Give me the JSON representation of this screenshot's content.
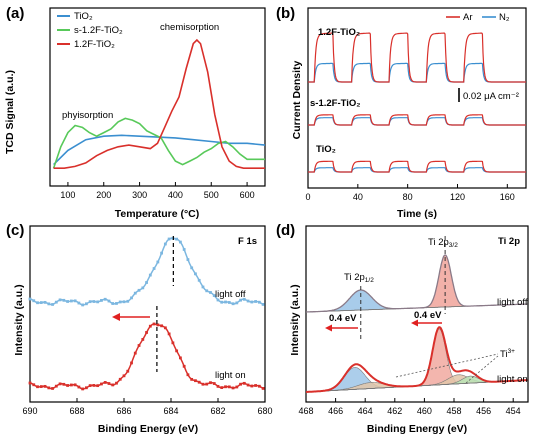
{
  "colors": {
    "tio2": "#3b8fd0",
    "s12f": "#58c95a",
    "f12": "#d9302b",
    "ar": "#d9302b",
    "n2": "#3b8fd0",
    "f1s_off": "#7cb7e0",
    "f1s_on": "#d9302b",
    "ti_fill_blue": "#9ec6e8",
    "ti_fill_red": "#f1a9a0",
    "ti_fill_green": "#b8e3b5",
    "ti_fill_tan": "#e2c6a8",
    "ti_fit": "#8a7a88"
  },
  "chart_data": [
    {
      "id": "a",
      "type": "line",
      "panel_label": "(a)",
      "xlabel": "Temperature (°C)",
      "ylabel": "TCD Signal (a.u.)",
      "xlim": [
        50,
        650
      ],
      "ylim": [
        0,
        1
      ],
      "x_ticks": [
        100,
        200,
        300,
        400,
        500,
        600
      ],
      "legend": [
        "TiO₂",
        "s-1.2F-TiO₂",
        "1.2F-TiO₂"
      ],
      "legend_position": "top-left",
      "annotations": [
        "chemisorption",
        "phyisorption"
      ],
      "series": [
        {
          "name": "TiO₂",
          "color_key": "tio2",
          "x": [
            60,
            100,
            150,
            200,
            250,
            300,
            350,
            400,
            450,
            500,
            550,
            600,
            650
          ],
          "y": [
            0.12,
            0.2,
            0.26,
            0.28,
            0.285,
            0.28,
            0.275,
            0.27,
            0.26,
            0.25,
            0.24,
            0.24,
            0.23
          ]
        },
        {
          "name": "s-1.2F-TiO₂",
          "color_key": "s12f",
          "x": [
            60,
            80,
            100,
            120,
            140,
            160,
            180,
            200,
            220,
            240,
            260,
            280,
            300,
            320,
            340,
            360,
            380,
            400,
            420,
            440,
            460,
            480,
            500,
            520,
            540,
            560,
            580,
            600,
            620,
            640,
            650
          ],
          "y": [
            0.1,
            0.22,
            0.3,
            0.34,
            0.33,
            0.3,
            0.28,
            0.3,
            0.32,
            0.36,
            0.38,
            0.37,
            0.35,
            0.31,
            0.29,
            0.27,
            0.2,
            0.14,
            0.12,
            0.14,
            0.16,
            0.19,
            0.21,
            0.24,
            0.25,
            0.22,
            0.18,
            0.15,
            0.15,
            0.15,
            0.15
          ]
        },
        {
          "name": "1.2F-TiO₂",
          "color_key": "f12",
          "x": [
            60,
            90,
            120,
            150,
            180,
            210,
            240,
            270,
            300,
            330,
            350,
            370,
            390,
            410,
            430,
            450,
            460,
            470,
            490,
            510,
            530,
            550,
            570,
            590,
            610,
            630,
            650
          ],
          "y": [
            0.1,
            0.1,
            0.11,
            0.13,
            0.17,
            0.2,
            0.22,
            0.23,
            0.22,
            0.21,
            0.24,
            0.33,
            0.42,
            0.5,
            0.66,
            0.8,
            0.82,
            0.8,
            0.64,
            0.4,
            0.22,
            0.14,
            0.11,
            0.1,
            0.1,
            0.1,
            0.1
          ]
        }
      ]
    },
    {
      "id": "b",
      "type": "line",
      "panel_label": "(b)",
      "xlabel": "Time (s)",
      "ylabel": "Current Density",
      "xlim": [
        0,
        175
      ],
      "x_ticks": [
        0,
        40,
        80,
        120,
        160
      ],
      "legend": [
        "Ar",
        "N₂"
      ],
      "legend_position": "top-right",
      "sample_labels": [
        "1.2F-TiO₂",
        "s-1.2F-TiO₂",
        "TiO₂"
      ],
      "scale_bar_label": "0.02 μA cm⁻²",
      "light_period_s": 30,
      "cycles": 5,
      "on_amplitude": {
        "1.2F-TiO₂": {
          "Ar": 1.0,
          "N₂": 0.38
        },
        "s-1.2F-TiO₂": {
          "Ar": 0.25,
          "N₂": 0.18
        },
        "TiO₂": {
          "Ar": 0.3,
          "N₂": 0.12
        }
      }
    },
    {
      "id": "c",
      "type": "line",
      "panel_label": "(c)",
      "title_in_panel": "F 1s",
      "xlabel": "Binding Energy (eV)",
      "ylabel": "Intensity (a.u.)",
      "xlim": [
        690,
        680
      ],
      "x_ticks": [
        690,
        688,
        686,
        684,
        682,
        680
      ],
      "series_labels": [
        "light off",
        "light on"
      ],
      "peaks": {
        "light off": 683.9,
        "light on": 684.6
      },
      "arrow_direction": "toward higher binding energy"
    },
    {
      "id": "d",
      "type": "line",
      "panel_label": "(d)",
      "title_in_panel": "Ti 2p",
      "xlabel": "Binding Energy (eV)",
      "ylabel": "Intensity (a.u.)",
      "xlim": [
        468,
        453
      ],
      "x_ticks": [
        468,
        466,
        464,
        462,
        460,
        458,
        456,
        454
      ],
      "series_labels": [
        "light off",
        "light on"
      ],
      "peak_labels": {
        "ti_2p_prefix": "Ti 2p",
        "p12": "1/2",
        "p32": "3/2",
        "ti3_prefix": "Ti",
        "ti3_sup": "3+"
      },
      "shift_labels": [
        "0.4 eV",
        "0.4 eV"
      ],
      "peaks": {
        "light off": {
          "2p1/2": 464.3,
          "2p3/2": 458.6
        },
        "light on": {
          "2p1/2": 464.7,
          "2p3/2": 459.0
        }
      }
    }
  ]
}
